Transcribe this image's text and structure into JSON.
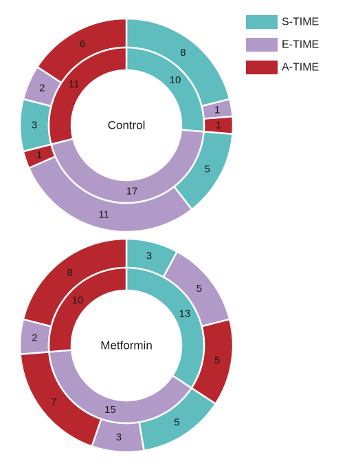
{
  "colors": {
    "S-TIME": "#5fbdc0",
    "E-TIME": "#b29ac8",
    "A-TIME": "#b8262e"
  },
  "legend": [
    {
      "label": "S-TIME",
      "color_key": "S-TIME"
    },
    {
      "label": "E-TIME",
      "color_key": "E-TIME"
    },
    {
      "label": "A-TIME",
      "color_key": "A-TIME"
    }
  ],
  "chart_data": [
    {
      "type": "donut",
      "center_label": "Control",
      "inner": [
        {
          "name": "S-TIME",
          "value": 10
        },
        {
          "name": "E-TIME",
          "value": 17
        },
        {
          "name": "A-TIME",
          "value": 11
        }
      ],
      "outer": [
        {
          "name": "S-TIME",
          "value": 8
        },
        {
          "name": "E-TIME",
          "value": 1
        },
        {
          "name": "A-TIME",
          "value": 1
        },
        {
          "name": "S-TIME",
          "value": 5
        },
        {
          "name": "E-TIME",
          "value": 11
        },
        {
          "name": "A-TIME",
          "value": 1
        },
        {
          "name": "S-TIME",
          "value": 3
        },
        {
          "name": "E-TIME",
          "value": 2
        },
        {
          "name": "A-TIME",
          "value": 6
        }
      ]
    },
    {
      "type": "donut",
      "center_label": "Metformin",
      "inner": [
        {
          "name": "S-TIME",
          "value": 13
        },
        {
          "name": "E-TIME",
          "value": 15
        },
        {
          "name": "A-TIME",
          "value": 10
        }
      ],
      "outer": [
        {
          "name": "S-TIME",
          "value": 3
        },
        {
          "name": "E-TIME",
          "value": 5
        },
        {
          "name": "A-TIME",
          "value": 5
        },
        {
          "name": "S-TIME",
          "value": 5
        },
        {
          "name": "E-TIME",
          "value": 3
        },
        {
          "name": "A-TIME",
          "value": 7
        },
        {
          "name": "E-TIME",
          "value": 2
        },
        {
          "name": "A-TIME",
          "value": 8
        }
      ]
    }
  ]
}
